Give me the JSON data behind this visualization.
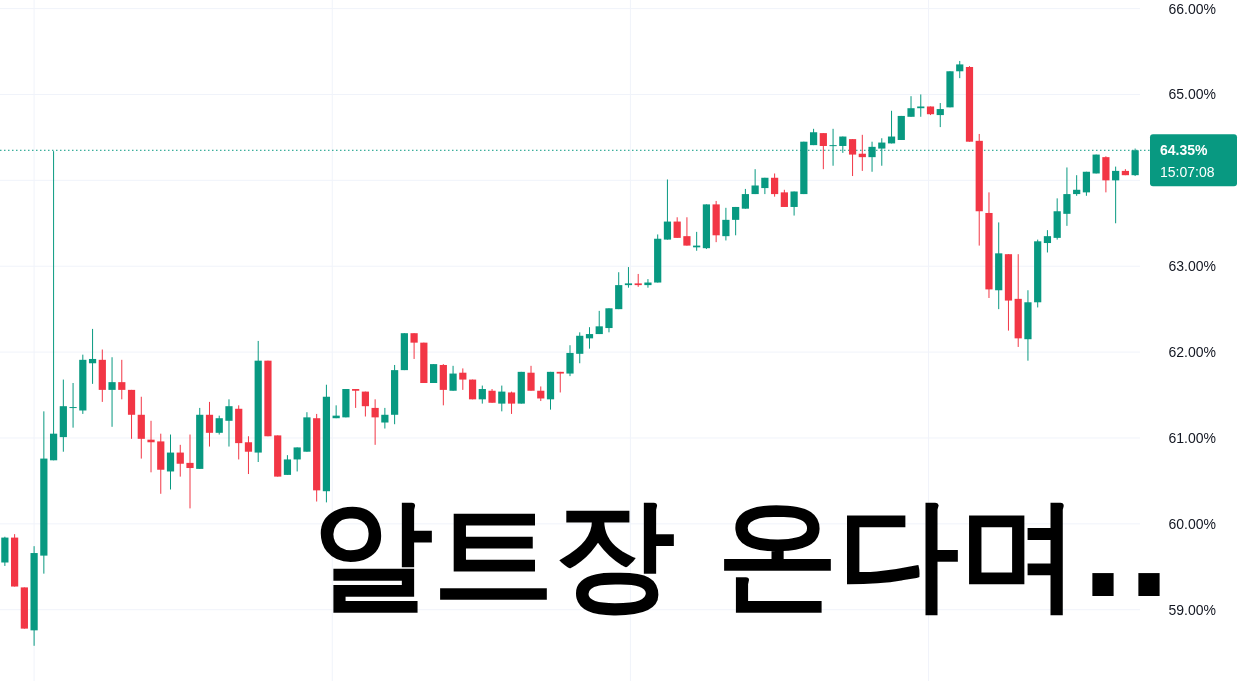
{
  "chart_data": {
    "type": "candlestick",
    "categories": [
      null,
      null,
      null,
      null,
      null,
      null,
      null,
      null,
      null,
      null,
      null,
      null,
      null,
      null,
      null,
      null,
      null,
      null,
      null,
      null,
      null,
      null,
      null,
      null,
      null,
      null,
      null,
      null,
      null,
      null,
      null,
      null,
      null,
      null,
      null,
      null,
      null,
      null,
      null,
      null,
      null,
      null,
      null,
      null,
      null,
      null,
      null,
      null,
      null,
      null,
      null,
      null,
      null,
      null,
      null,
      null,
      null,
      null,
      null,
      null,
      null,
      null,
      null,
      null,
      null,
      null,
      null,
      null,
      null,
      null,
      null,
      null,
      null,
      null,
      null,
      null,
      null,
      null,
      null,
      null,
      null,
      null,
      null,
      null,
      null,
      null,
      null,
      null,
      null,
      null,
      null,
      null,
      null,
      null,
      null,
      null,
      null,
      null,
      null,
      null,
      null,
      null,
      null,
      null,
      null,
      null,
      null,
      null,
      null,
      null,
      null,
      null,
      null,
      null,
      null,
      null,
      null
    ],
    "ohlc": [
      [
        59.55,
        59.85,
        59.51,
        59.84
      ],
      [
        59.84,
        59.88,
        59.27,
        59.27
      ],
      [
        59.26,
        59.26,
        58.78,
        58.78
      ],
      [
        58.76,
        59.74,
        58.58,
        59.66
      ],
      [
        59.63,
        61.31,
        59.42,
        60.76
      ],
      [
        60.74,
        64.34,
        60.74,
        61.05
      ],
      [
        61.01,
        61.68,
        60.84,
        61.37
      ],
      [
        61.35,
        61.64,
        61.12,
        61.36
      ],
      [
        61.32,
        61.97,
        61.28,
        61.91
      ],
      [
        61.87,
        62.27,
        61.63,
        61.92
      ],
      [
        61.91,
        62.03,
        61.42,
        61.56
      ],
      [
        61.56,
        61.94,
        61.13,
        61.65
      ],
      [
        61.65,
        61.91,
        61.45,
        61.56
      ],
      [
        61.56,
        61.56,
        60.99,
        61.27
      ],
      [
        61.27,
        61.48,
        60.76,
        60.99
      ],
      [
        60.98,
        61.2,
        60.6,
        60.95
      ],
      [
        60.96,
        61.05,
        60.35,
        60.63
      ],
      [
        60.61,
        61.04,
        60.4,
        60.83
      ],
      [
        60.83,
        60.92,
        60.55,
        60.7
      ],
      [
        60.71,
        61.04,
        60.18,
        60.65
      ],
      [
        60.64,
        61.35,
        60.64,
        61.27
      ],
      [
        61.27,
        61.42,
        60.9,
        61.06
      ],
      [
        61.06,
        61.26,
        61.04,
        61.23
      ],
      [
        61.2,
        61.45,
        60.9,
        61.37
      ],
      [
        61.34,
        61.38,
        60.75,
        60.94
      ],
      [
        60.95,
        61.02,
        60.58,
        60.84
      ],
      [
        60.83,
        62.13,
        60.72,
        61.9
      ],
      [
        61.9,
        61.9,
        61.02,
        61.02
      ],
      [
        61.03,
        61.03,
        60.55,
        60.55
      ],
      [
        60.57,
        60.8,
        60.57,
        60.75
      ],
      [
        60.75,
        60.89,
        60.61,
        60.89
      ],
      [
        60.84,
        61.3,
        60.84,
        61.24
      ],
      [
        61.23,
        61.28,
        60.26,
        60.39
      ],
      [
        60.38,
        61.62,
        60.25,
        61.48
      ],
      [
        61.23,
        61.38,
        61.23,
        61.26
      ],
      [
        61.24,
        61.57,
        61.24,
        61.57
      ],
      [
        61.57,
        61.57,
        61.35,
        61.55
      ],
      [
        61.54,
        61.54,
        61.25,
        61.37
      ],
      [
        61.35,
        61.45,
        60.92,
        61.24
      ],
      [
        61.18,
        61.35,
        61.11,
        61.27
      ],
      [
        61.27,
        61.85,
        61.16,
        61.79
      ],
      [
        61.79,
        62.22,
        61.79,
        62.22
      ],
      [
        62.22,
        62.22,
        61.92,
        62.11
      ],
      [
        62.11,
        62.11,
        61.64,
        61.64
      ],
      [
        61.64,
        61.86,
        61.64,
        61.86
      ],
      [
        61.85,
        61.86,
        61.38,
        61.56
      ],
      [
        61.55,
        61.84,
        61.55,
        61.75
      ],
      [
        61.76,
        61.81,
        61.56,
        61.68
      ],
      [
        61.68,
        61.68,
        61.45,
        61.45
      ],
      [
        61.45,
        61.61,
        61.4,
        61.57
      ],
      [
        61.55,
        61.57,
        61.41,
        61.41
      ],
      [
        61.4,
        61.61,
        61.31,
        61.54
      ],
      [
        61.53,
        61.54,
        61.28,
        61.4
      ],
      [
        61.4,
        61.77,
        61.4,
        61.77
      ],
      [
        61.76,
        61.84,
        61.55,
        61.55
      ],
      [
        61.55,
        61.6,
        61.43,
        61.46
      ],
      [
        61.45,
        61.77,
        61.33,
        61.77
      ],
      [
        61.77,
        61.77,
        61.53,
        61.75
      ],
      [
        61.75,
        62.08,
        61.72,
        61.99
      ],
      [
        61.98,
        62.23,
        61.87,
        62.19
      ],
      [
        62.16,
        62.29,
        62.04,
        62.21
      ],
      [
        62.21,
        62.48,
        62.21,
        62.3
      ],
      [
        62.28,
        62.51,
        62.23,
        62.51
      ],
      [
        62.5,
        62.93,
        62.5,
        62.78
      ],
      [
        62.78,
        62.99,
        62.75,
        62.8
      ],
      [
        62.8,
        62.91,
        62.76,
        62.78
      ],
      [
        62.78,
        62.85,
        62.75,
        62.81
      ],
      [
        62.81,
        63.37,
        62.81,
        63.32
      ],
      [
        63.31,
        64.01,
        63.31,
        63.52
      ],
      [
        63.52,
        63.57,
        63.33,
        63.33
      ],
      [
        63.35,
        63.57,
        63.24,
        63.24
      ],
      [
        63.22,
        63.4,
        63.18,
        63.24
      ],
      [
        63.21,
        63.72,
        63.2,
        63.72
      ],
      [
        63.72,
        63.76,
        63.28,
        63.36
      ],
      [
        63.35,
        63.68,
        63.3,
        63.54
      ],
      [
        63.54,
        63.69,
        63.36,
        63.69
      ],
      [
        63.67,
        63.9,
        63.67,
        63.84
      ],
      [
        63.84,
        64.13,
        63.84,
        63.94
      ],
      [
        63.91,
        64.03,
        63.84,
        64.03
      ],
      [
        64.03,
        64.08,
        63.81,
        63.84
      ],
      [
        63.86,
        63.89,
        63.69,
        63.69
      ],
      [
        63.69,
        63.87,
        63.59,
        63.87
      ],
      [
        63.84,
        64.45,
        63.84,
        64.45
      ],
      [
        64.41,
        64.6,
        64.41,
        64.56
      ],
      [
        64.55,
        64.55,
        64.13,
        64.4
      ],
      [
        64.4,
        64.6,
        64.17,
        64.41
      ],
      [
        64.4,
        64.51,
        64.32,
        64.51
      ],
      [
        64.48,
        64.48,
        64.05,
        64.3
      ],
      [
        64.31,
        64.53,
        64.11,
        64.27
      ],
      [
        64.27,
        64.45,
        64.1,
        64.39
      ],
      [
        64.37,
        64.49,
        64.17,
        64.44
      ],
      [
        64.43,
        64.81,
        64.43,
        64.51
      ],
      [
        64.47,
        64.75,
        64.47,
        64.75
      ],
      [
        64.74,
        64.98,
        64.74,
        64.84
      ],
      [
        64.84,
        65.0,
        64.74,
        64.86
      ],
      [
        64.86,
        64.86,
        64.76,
        64.77
      ],
      [
        64.76,
        64.9,
        64.62,
        64.83
      ],
      [
        64.85,
        65.27,
        64.85,
        65.27
      ],
      [
        65.27,
        65.39,
        65.19,
        65.35
      ],
      [
        65.32,
        65.33,
        64.45,
        64.45
      ],
      [
        64.46,
        64.54,
        63.24,
        63.64
      ],
      [
        63.62,
        63.86,
        62.63,
        62.73
      ],
      [
        62.72,
        63.51,
        62.5,
        63.15
      ],
      [
        63.14,
        63.14,
        62.25,
        62.6
      ],
      [
        62.62,
        63.14,
        62.06,
        62.16
      ],
      [
        62.15,
        62.72,
        61.9,
        62.58
      ],
      [
        62.58,
        63.31,
        62.52,
        63.29
      ],
      [
        63.27,
        63.42,
        63.16,
        63.35
      ],
      [
        63.33,
        63.79,
        63.31,
        63.64
      ],
      [
        63.61,
        64.15,
        63.47,
        63.84
      ],
      [
        63.84,
        64.06,
        63.82,
        63.89
      ],
      [
        63.86,
        64.1,
        63.82,
        64.1
      ],
      [
        64.08,
        64.3,
        64.08,
        64.3
      ],
      [
        64.27,
        64.28,
        63.86,
        64.0
      ],
      [
        64.0,
        64.16,
        63.5,
        64.11
      ],
      [
        64.11,
        64.13,
        64.06,
        64.06
      ],
      [
        64.06,
        64.37,
        64.05,
        64.35
      ]
    ],
    "colors": [
      "#089981",
      "#f23645",
      "#f23645",
      "#089981",
      "#089981",
      "#089981",
      "#089981",
      "#089981",
      "#089981",
      "#089981",
      "#f23645",
      "#089981",
      "#f23645",
      "#f23645",
      "#f23645",
      "#f23645",
      "#f23645",
      "#089981",
      "#f23645",
      "#f23645",
      "#089981",
      "#f23645",
      "#089981",
      "#089981",
      "#f23645",
      "#f23645",
      "#089981",
      "#f23645",
      "#f23645",
      "#089981",
      "#089981",
      "#089981",
      "#f23645",
      "#089981",
      "#089981",
      "#089981",
      "#f23645",
      "#f23645",
      "#f23645",
      "#089981",
      "#089981",
      "#089981",
      "#f23645",
      "#f23645",
      "#089981",
      "#f23645",
      "#089981",
      "#f23645",
      "#f23645",
      "#089981",
      "#f23645",
      "#089981",
      "#f23645",
      "#089981",
      "#f23645",
      "#f23645",
      "#089981",
      "#f23645",
      "#089981",
      "#089981",
      "#089981",
      "#089981",
      "#089981",
      "#089981",
      "#089981",
      "#f23645",
      "#089981",
      "#089981",
      "#089981",
      "#f23645",
      "#f23645",
      "#089981",
      "#089981",
      "#f23645",
      "#089981",
      "#089981",
      "#089981",
      "#089981",
      "#089981",
      "#f23645",
      "#f23645",
      "#089981",
      "#089981",
      "#089981",
      "#f23645",
      "#089981",
      "#089981",
      "#f23645",
      "#f23645",
      "#089981",
      "#089981",
      "#089981",
      "#089981",
      "#089981",
      "#089981",
      "#f23645",
      "#089981",
      "#089981",
      "#089981",
      "#f23645",
      "#f23645",
      "#f23645",
      "#089981",
      "#f23645",
      "#f23645",
      "#089981",
      "#089981",
      "#089981",
      "#089981",
      "#089981",
      "#089981",
      "#089981",
      "#089981",
      "#f23645",
      "#089981",
      "#f23645",
      "#089981"
    ],
    "ylim": [
      58.17,
      66.1
    ],
    "yticks": [
      {
        "value": 59,
        "label": "59.00%"
      },
      {
        "value": 60,
        "label": "60.00%"
      },
      {
        "value": 61,
        "label": "61.00%"
      },
      {
        "value": 62,
        "label": "62.00%"
      },
      {
        "value": 63,
        "label": "63.00%"
      },
      {
        "value": 64,
        "label": null
      },
      {
        "value": 65,
        "label": "65.00%"
      },
      {
        "value": 66,
        "label": "66.00%"
      }
    ],
    "ref_lines": [
      {
        "axis": "y",
        "value": 64.35,
        "label": "64.35%",
        "color": "#089981",
        "line_style": "dotted"
      }
    ],
    "annotations": [
      "15:07:08",
      "알트장 온다며.."
    ],
    "grid": true,
    "tick_labels": "y"
  }
}
